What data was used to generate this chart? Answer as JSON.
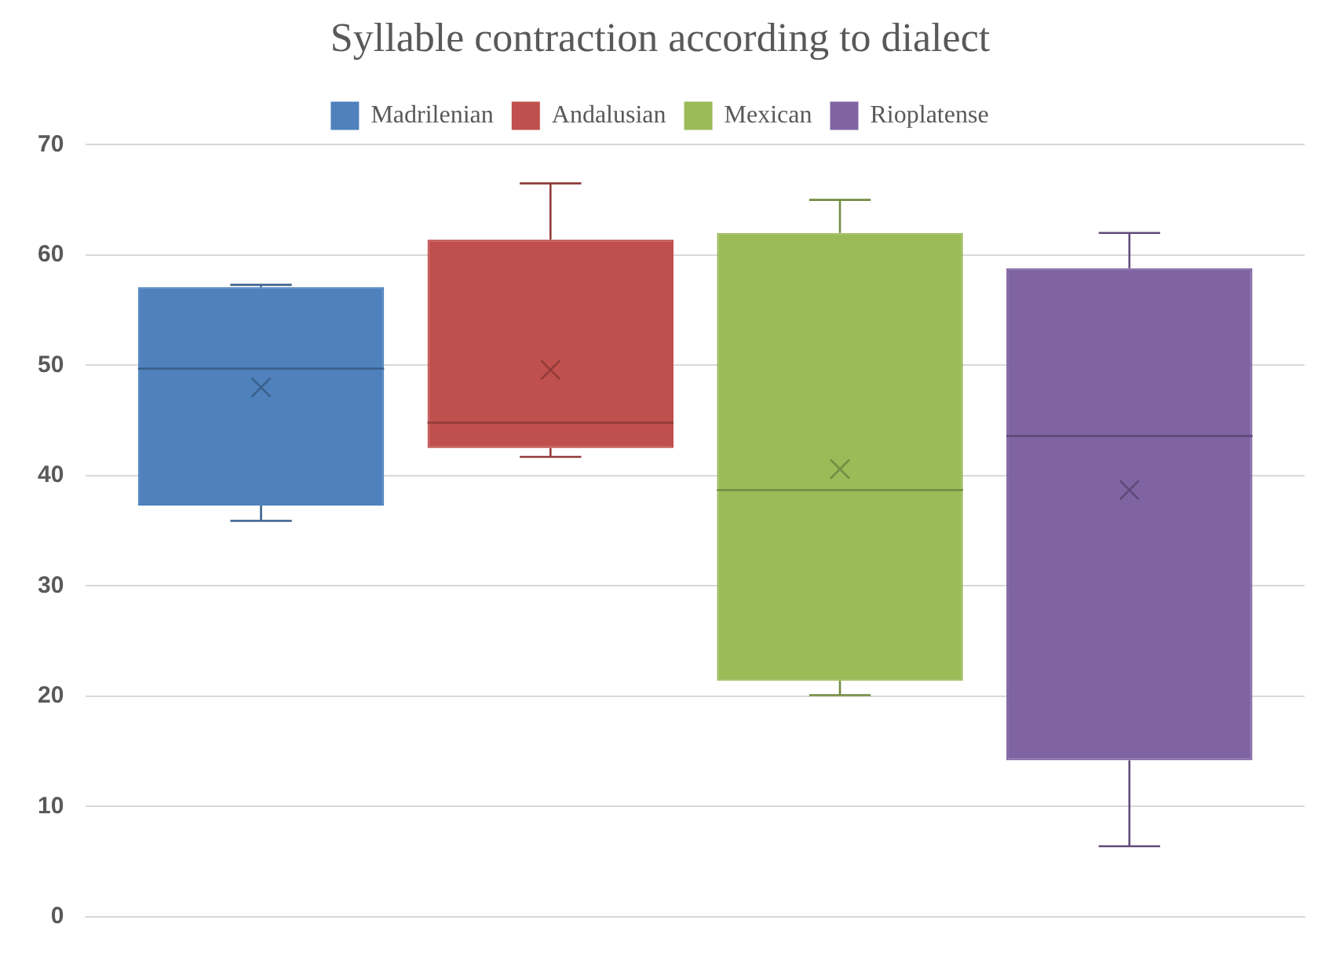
{
  "chart_data": {
    "type": "box",
    "title": "Syllable contraction according to dialect",
    "categories": [
      null
    ],
    "series": [
      {
        "name": "Madrilenian",
        "color": "#4f81bd",
        "boxes": [
          {
            "low": 35.9,
            "q1": 37.3,
            "median": 49.7,
            "q3": 57.1,
            "high": 57.3,
            "mean": 48.0
          }
        ]
      },
      {
        "name": "Andalusian",
        "color": "#c0504d",
        "boxes": [
          {
            "low": 41.7,
            "q1": 42.5,
            "median": 44.8,
            "q3": 61.4,
            "high": 66.5,
            "mean": 49.6
          }
        ]
      },
      {
        "name": "Mexican",
        "color": "#9bbb59",
        "boxes": [
          {
            "low": 20.1,
            "q1": 21.4,
            "median": 38.7,
            "q3": 62.0,
            "high": 65.0,
            "mean": 40.6
          }
        ]
      },
      {
        "name": "Rioplatense",
        "color": "#8064a2",
        "boxes": [
          {
            "low": 6.4,
            "q1": 14.2,
            "median": 43.6,
            "q3": 58.8,
            "high": 62.0,
            "mean": 38.7
          }
        ]
      }
    ],
    "ylim": [
      0,
      70
    ],
    "yticks": [
      0,
      10,
      20,
      30,
      40,
      50,
      60,
      70
    ],
    "grid": "y",
    "legend": "top",
    "tick_labels": "y"
  }
}
